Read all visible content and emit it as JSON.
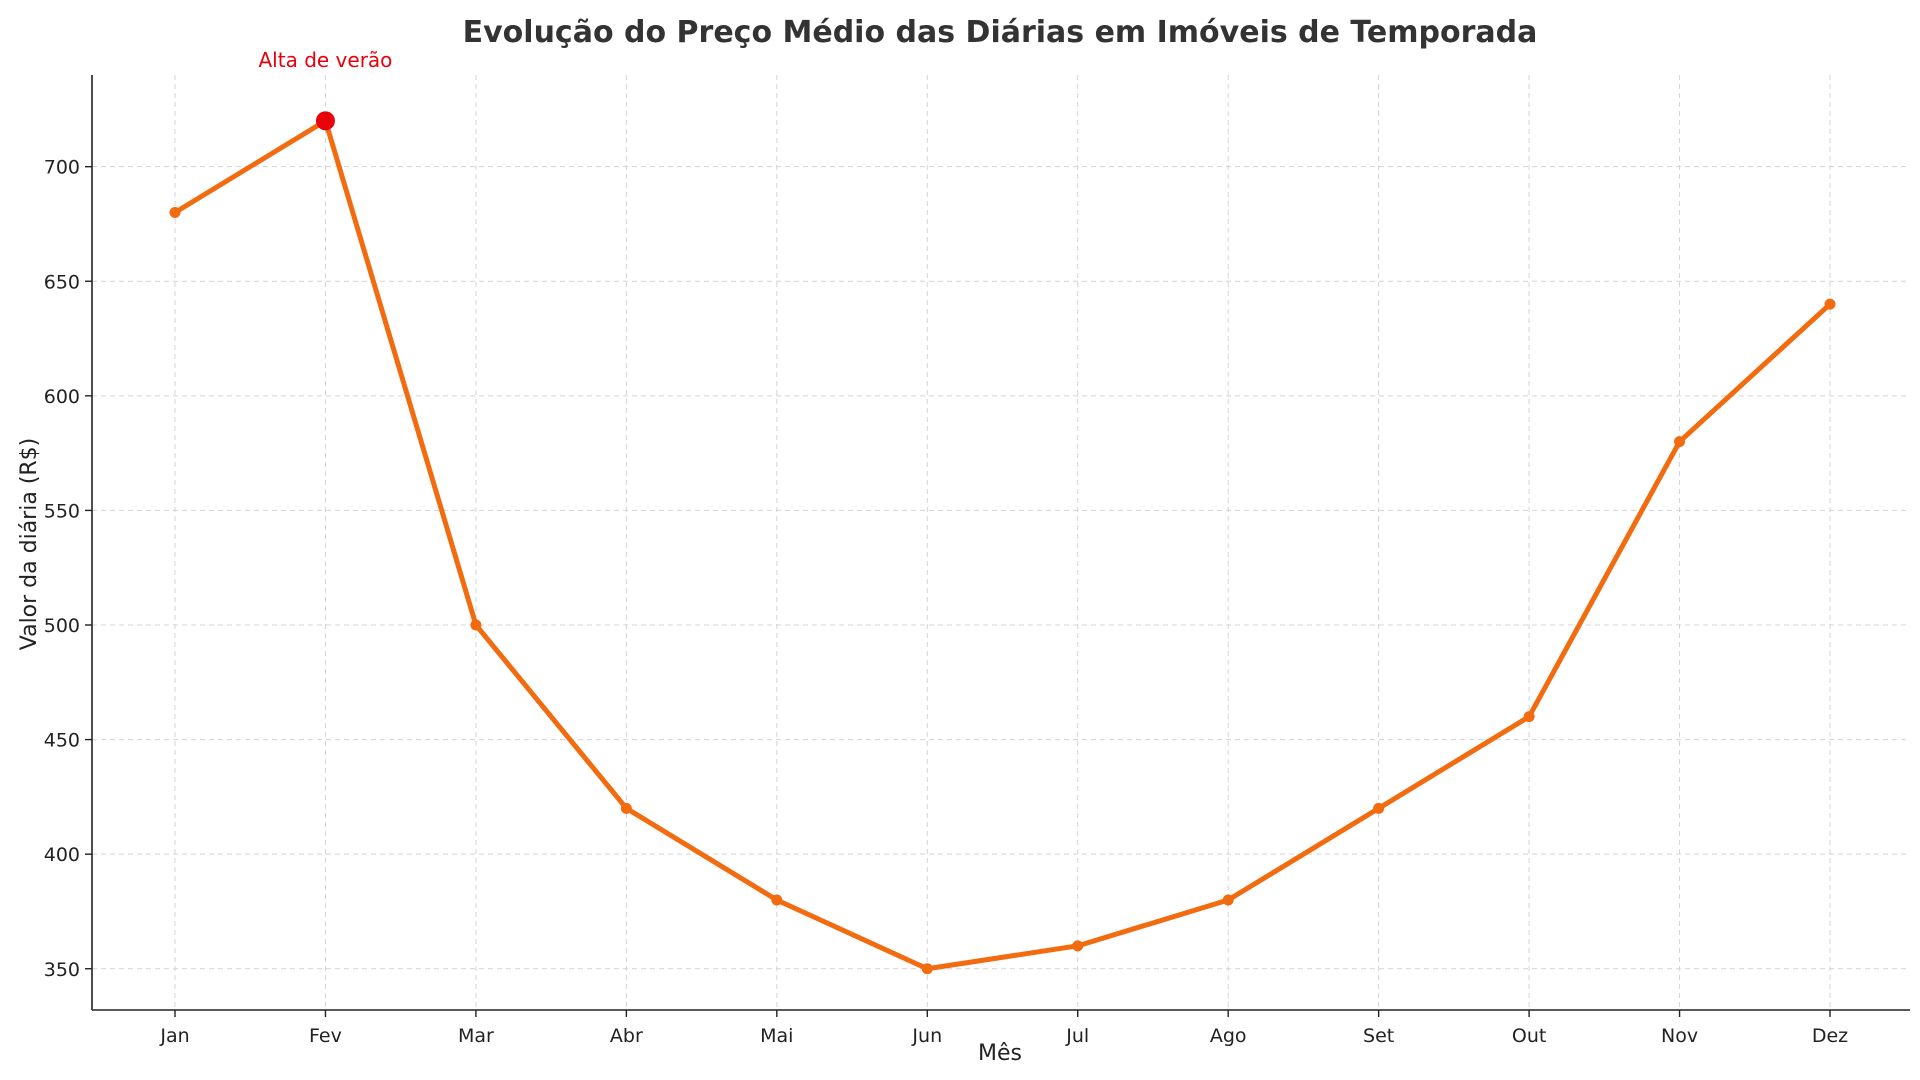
{
  "chart_data": {
    "type": "line",
    "title": "Evolução do Preço Médio das Diárias em Imóveis de Temporada",
    "xlabel": "Mês",
    "ylabel": "Valor da diária (R$)",
    "categories": [
      "Jan",
      "Fev",
      "Mar",
      "Abr",
      "Mai",
      "Jun",
      "Jul",
      "Ago",
      "Set",
      "Out",
      "Nov",
      "Dez"
    ],
    "series": [
      {
        "values": [
          680,
          720,
          500,
          420,
          380,
          350,
          360,
          380,
          420,
          460,
          580,
          640
        ],
        "color": "#f26b0f"
      }
    ],
    "y_ticks": [
      350,
      400,
      450,
      500,
      550,
      600,
      650,
      700
    ],
    "ylim": [
      332,
      740
    ],
    "grid": true,
    "legend": "none",
    "annotations": [
      {
        "text": "Alta de verão",
        "category": "Fev",
        "value": 720,
        "color": "#e8000b"
      }
    ]
  }
}
